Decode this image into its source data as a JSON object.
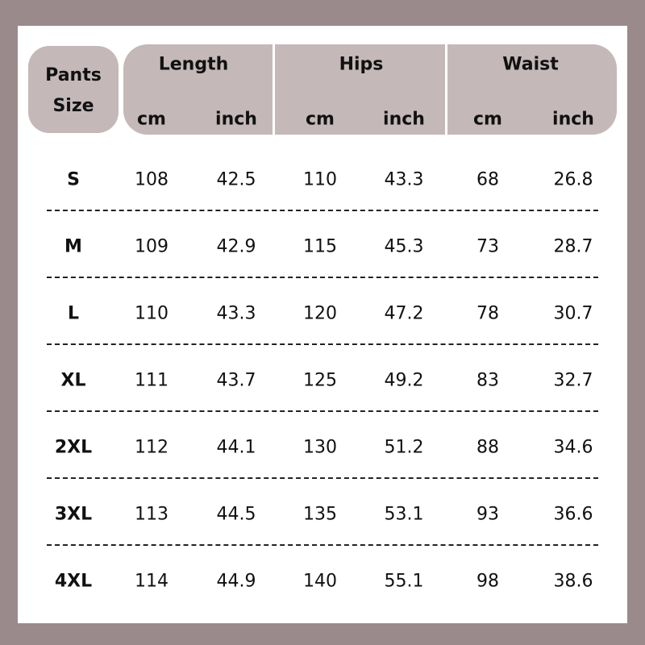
{
  "table": {
    "size_header": "Pants Size",
    "groups": [
      {
        "name": "Length",
        "units": [
          "cm",
          "inch"
        ]
      },
      {
        "name": "Hips",
        "units": [
          "cm",
          "inch"
        ]
      },
      {
        "name": "Waist",
        "units": [
          "cm",
          "inch"
        ]
      }
    ],
    "rows": [
      {
        "size": "S",
        "values": [
          108,
          42.5,
          110,
          43.3,
          68,
          26.8
        ]
      },
      {
        "size": "M",
        "values": [
          109,
          42.9,
          115,
          45.3,
          73,
          28.7
        ]
      },
      {
        "size": "L",
        "values": [
          110,
          43.3,
          120,
          47.2,
          78,
          30.7
        ]
      },
      {
        "size": "XL",
        "values": [
          111,
          43.7,
          125,
          49.2,
          83,
          32.7
        ]
      },
      {
        "size": "2XL",
        "values": [
          112,
          44.1,
          130,
          51.2,
          88,
          34.6
        ]
      },
      {
        "size": "3XL",
        "values": [
          113,
          44.5,
          135,
          53.1,
          93,
          36.6
        ]
      },
      {
        "size": "4XL",
        "values": [
          114,
          44.9,
          140,
          55.1,
          98,
          38.6
        ]
      }
    ]
  }
}
